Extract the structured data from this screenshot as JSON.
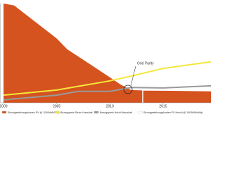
{
  "chart_data": {
    "type": "area",
    "xlim": [
      2000,
      2019.5
    ],
    "ylim": [
      0,
      52
    ],
    "xticks": [
      2000,
      2005,
      2010,
      2015
    ],
    "series": [
      {
        "name": "Stromgestehungskosten PV @ 1000kWh/kWp",
        "kind": "area",
        "color": "#d4531f",
        "x": [
          2000,
          2001,
          2005,
          2006,
          2008,
          2010,
          2011,
          2012,
          2013,
          2019.5
        ],
        "values": [
          52,
          51,
          33.7,
          28,
          20.7,
          13.3,
          9.6,
          6.7,
          6.5,
          6
        ]
      },
      {
        "name": "Bezugspreis Strom Haushalt",
        "kind": "line",
        "color": "#f5e63a",
        "x": [
          2000,
          2005,
          2010,
          2012,
          2015,
          2019.5
        ],
        "values": [
          4,
          6.7,
          11.5,
          14,
          18,
          21.5
        ]
      },
      {
        "name": "Bezugspreis Heizöl Haushalt",
        "kind": "line",
        "color": "#9a9a9a",
        "x": [
          2000,
          2005,
          2007,
          2010,
          2012,
          2015,
          2019.5
        ],
        "values": [
          1.5,
          4,
          6,
          6,
          8,
          7.8,
          8.9
        ]
      },
      {
        "name": "Stromgestehungskosten PV Heizöl @ 1000kWh/kWp",
        "kind": "legend-only",
        "color": "#ffffff"
      }
    ],
    "annotations": [
      "Grid Parity"
    ]
  }
}
